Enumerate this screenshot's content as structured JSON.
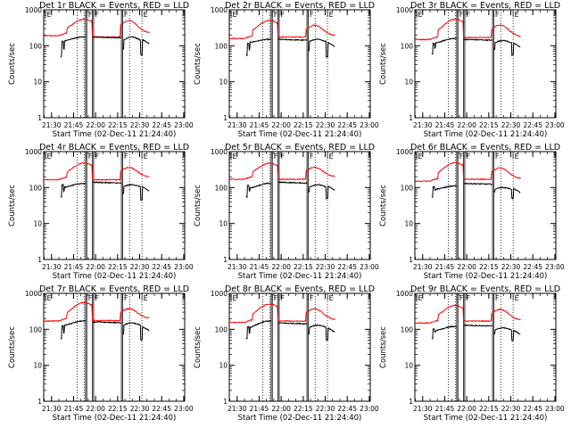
{
  "chart_data": {
    "type": "line",
    "layout": "3x3 grid",
    "shared": {
      "xlabel": "Start Time (02-Dec-11 21:24:40)",
      "ylabel": "Counts/sec",
      "xticks": [
        "21:30",
        "21:45",
        "22:00",
        "22:15",
        "22:30",
        "22:45",
        "23:00"
      ],
      "yticks": [
        "1",
        "10",
        "100",
        "1000"
      ],
      "yscale": "log",
      "ylim": [
        1,
        1000
      ],
      "xlim_minutes_after_2124_40": [
        0,
        96
      ],
      "grid": false,
      "series_colors": {
        "Events": "#000000",
        "LLD": "#ff0000"
      },
      "flag_labels": [
        "E",
        "F",
        "F",
        "F",
        "E"
      ]
    },
    "panels": [
      {
        "title": "Det 1r BLACK = Events, RED = LLD",
        "events_start": 140,
        "events_peaks": [
          175,
          175
        ],
        "events_levels": [
          130,
          175,
          110,
          150
        ],
        "lld_start": 190,
        "lld_peaks": [
          510,
          460
        ],
        "lld_levels": [
          170,
          220,
          175,
          190
        ],
        "events_dips": [
          50,
          40,
          55
        ]
      },
      {
        "title": "Det 2r BLACK = Events, RED = LLD",
        "events_start": 120,
        "events_peaks": [
          150,
          150
        ],
        "events_levels": [
          120,
          150,
          110,
          125
        ],
        "lld_start": 160,
        "lld_peaks": [
          470,
          340
        ],
        "lld_levels": [
          165,
          215,
          175,
          170
        ],
        "events_dips": [
          55,
          40,
          50
        ]
      },
      {
        "title": "Det 3r BLACK = Events, RED = LLD",
        "events_start": 120,
        "events_peaks": [
          160,
          140
        ],
        "events_levels": [
          110,
          150,
          100,
          120
        ],
        "lld_start": 150,
        "lld_peaks": [
          520,
          350
        ],
        "lld_levels": [
          150,
          210,
          170,
          160
        ],
        "events_dips": [
          60,
          45,
          55
        ]
      },
      {
        "title": "Det 4r BLACK = Events, RED = LLD",
        "events_start": 125,
        "events_peaks": [
          130,
          120
        ],
        "events_levels": [
          95,
          140,
          90,
          105
        ],
        "lld_start": 165,
        "lld_peaks": [
          450,
          330
        ],
        "lld_levels": [
          150,
          215,
          165,
          165
        ],
        "events_dips": [
          55,
          40,
          45
        ]
      },
      {
        "title": "Det 5r BLACK = Events, RED = LLD",
        "events_start": 120,
        "events_peaks": [
          130,
          120
        ],
        "events_levels": [
          90,
          140,
          85,
          110
        ],
        "lld_start": 170,
        "lld_peaks": [
          440,
          330
        ],
        "lld_levels": [
          160,
          215,
          170,
          170
        ],
        "events_dips": [
          55,
          40,
          50
        ]
      },
      {
        "title": "Det 6r BLACK = Events, RED = LLD",
        "events_start": 110,
        "events_peaks": [
          110,
          100
        ],
        "events_levels": [
          85,
          130,
          80,
          95
        ],
        "lld_start": 150,
        "lld_peaks": [
          460,
          320
        ],
        "lld_levels": [
          150,
          210,
          170,
          160
        ],
        "events_dips": [
          55,
          45,
          50
        ]
      },
      {
        "title": "Det 7r BLACK = Events, RED = LLD",
        "events_start": 130,
        "events_peaks": [
          170,
          150
        ],
        "events_levels": [
          120,
          160,
          110,
          120
        ],
        "lld_start": 170,
        "lld_peaks": [
          520,
          340
        ],
        "lld_levels": [
          160,
          215,
          175,
          170
        ],
        "events_dips": [
          55,
          40,
          50
        ]
      },
      {
        "title": "Det 8r BLACK = Events, RED = LLD",
        "events_start": 120,
        "events_peaks": [
          170,
          130
        ],
        "events_levels": [
          100,
          150,
          95,
          110
        ],
        "lld_start": 155,
        "lld_peaks": [
          470,
          340
        ],
        "lld_levels": [
          150,
          210,
          170,
          160
        ],
        "events_dips": [
          55,
          40,
          50
        ]
      },
      {
        "title": "Det 9r BLACK = Events, RED = LLD",
        "events_start": 110,
        "events_peaks": [
          120,
          110
        ],
        "events_levels": [
          85,
          130,
          80,
          95
        ],
        "lld_start": 150,
        "lld_peaks": [
          430,
          330
        ],
        "lld_levels": [
          150,
          210,
          170,
          160
        ],
        "events_dips": [
          55,
          45,
          50
        ]
      }
    ],
    "markers_minutes": {
      "dotted": [
        22.8,
        27.5,
        58.5,
        66.9
      ],
      "solid": [
        28.5,
        29.3,
        33.2,
        34.0,
        52.9,
        53.7
      ],
      "flag_positions": [
        1.2,
        29.3,
        34.0,
        53.7,
        66.9
      ],
      "events_gaps": [
        [
          28.5,
          33.2
        ],
        [
          52.9,
          53.7
        ]
      ]
    }
  }
}
